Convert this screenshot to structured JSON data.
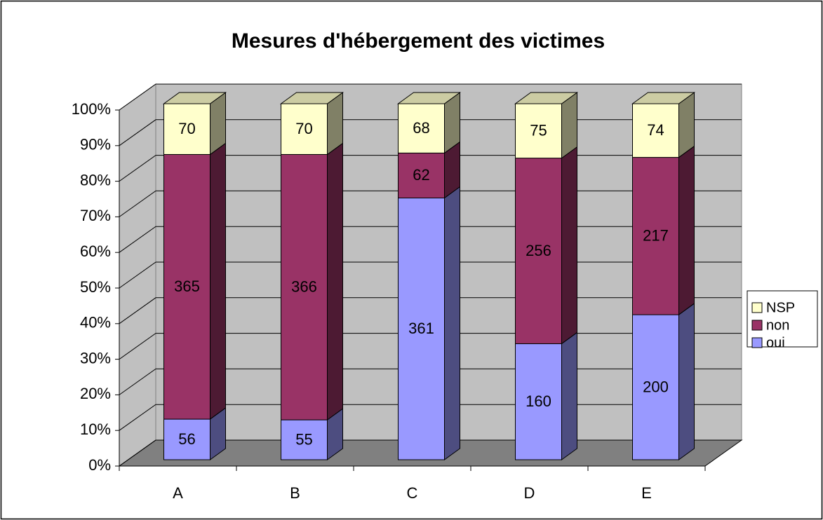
{
  "chart_data": {
    "type": "bar",
    "stacking": "percent",
    "title": "Mesures d'hébergement des victimes",
    "categories": [
      "A",
      "B",
      "C",
      "D",
      "E"
    ],
    "series": [
      {
        "name": "oui",
        "color": "#9999ff",
        "values": [
          56,
          55,
          361,
          160,
          200
        ]
      },
      {
        "name": "non",
        "color": "#993366",
        "values": [
          365,
          366,
          62,
          256,
          217
        ]
      },
      {
        "name": "NSP",
        "color": "#ffffcc",
        "values": [
          70,
          70,
          68,
          75,
          74
        ]
      }
    ],
    "ylim": [
      0,
      100
    ],
    "yticks": [
      {
        "value": 0,
        "label": "0%"
      },
      {
        "value": 10,
        "label": "10%"
      },
      {
        "value": 20,
        "label": "20%"
      },
      {
        "value": 30,
        "label": "30%"
      },
      {
        "value": 40,
        "label": "40%"
      },
      {
        "value": 50,
        "label": "50%"
      },
      {
        "value": 60,
        "label": "60%"
      },
      {
        "value": 70,
        "label": "70%"
      },
      {
        "value": 80,
        "label": "80%"
      },
      {
        "value": 90,
        "label": "90%"
      },
      {
        "value": 100,
        "label": "100%"
      }
    ],
    "grid": true,
    "legend": "right"
  }
}
